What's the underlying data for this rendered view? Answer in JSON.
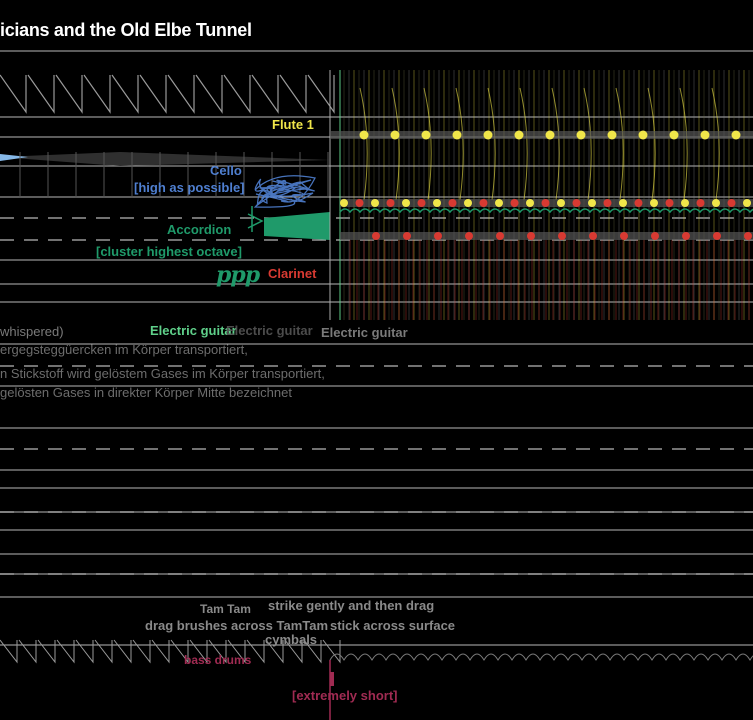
{
  "score": {
    "title": "icians and the Old Elbe Tunnel",
    "instruments": {
      "flute": "Flute 1",
      "cello": "Cello",
      "cello_note": "[high as possible]",
      "accordion": "Accordion",
      "accordion_note": "[cluster highest octave]",
      "dynamic": "ppp",
      "clarinet": "Clarinet",
      "electric_guitar_a": "Electric guitar",
      "electric_guitar_b": "Electric guitar",
      "electric_guitar_c": "Electric guitar"
    },
    "voice": {
      "whispered": "whispered)",
      "line1": "ergegsteggüercken im Körper transportiert,",
      "line2": "n Stickstoff wird gelöstem Gases im Körper transportiert,",
      "line3": "gelösten Gases in direkter Körper Mitte bezeichnet"
    },
    "percussion": {
      "tam_tam": "Tam Tam",
      "strike": "strike gently and then drag",
      "brushes": "drag brushes across TamTam",
      "stick": "stick across surface",
      "cymbals": "cymbals",
      "bass_drums": "bass drums",
      "short": "[extremely short]"
    }
  },
  "colors": {
    "background": "#000000",
    "staff_line": "#d8d8d8",
    "flute": "#f0e64a",
    "cello": "#4f7fd0",
    "accordion": "#1f9a6a",
    "clarinet": "#d83a32",
    "guitar": "#5fd08a",
    "bass_drum": "#a02b52"
  }
}
